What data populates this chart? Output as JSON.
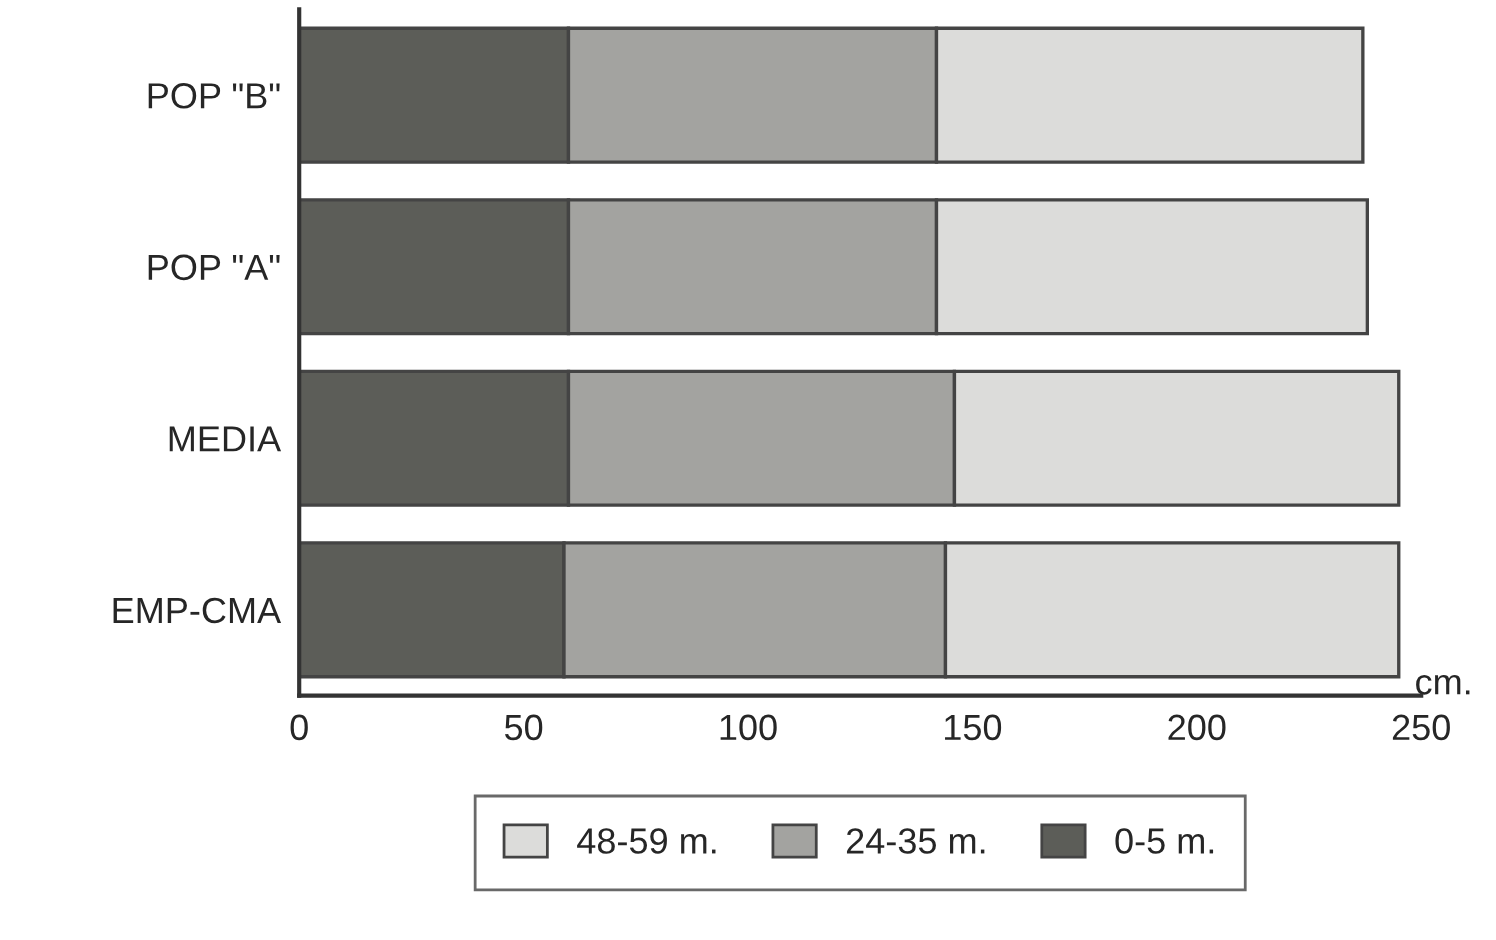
{
  "chart_data": {
    "type": "bar",
    "orientation": "horizontal",
    "stacked": true,
    "categories": [
      "POP \"B\"",
      "POP \"A\"",
      "MEDIA",
      "EMP-CMA"
    ],
    "series": [
      {
        "name": "0-5 m.",
        "color": "#5c5d58",
        "values": [
          60,
          60,
          60,
          59
        ]
      },
      {
        "name": "24-35 m.",
        "color": "#a3a3a0",
        "values": [
          82,
          82,
          86,
          85
        ]
      },
      {
        "name": "48-59 m.",
        "color": "#dcdcda",
        "values": [
          95,
          96,
          99,
          101
        ]
      }
    ],
    "xlabel": "cm.",
    "xlim": [
      0,
      250
    ],
    "xticks": [
      0,
      50,
      100,
      150,
      200,
      250
    ],
    "legend": "bottom",
    "grid": false
  }
}
